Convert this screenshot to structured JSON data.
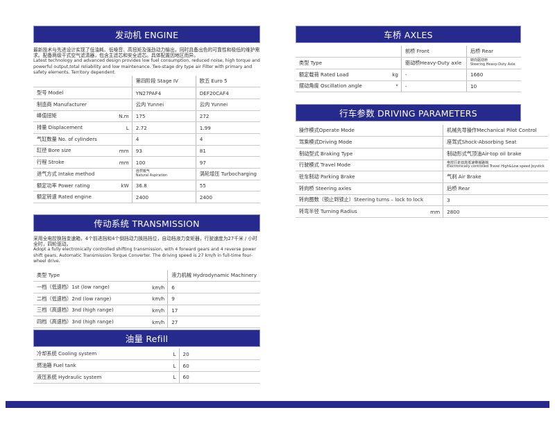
{
  "engine": {
    "title": "发动机  ENGINE",
    "intro_cn": "最新技术与先进设计实现了低油耗、低噪音、高扭矩及强劲动力输出，同时具备出色的可靠性和极低的维护需求。配备两级干式空气滤清器，包含主滤芯和安全滤芯。具体配置因地区而异。",
    "intro_en": "Latest technology and advanced design provides low fuel consumption, reduced noise, high torque and powerful output,total reliability and low maintenance. Two-stage dry type air Filter with primary and safety elements. Territory dependent.",
    "columns": [
      "第四阶段 Stage IV",
      "欧五 Euro 5"
    ],
    "rows": [
      {
        "label": "型号 Model",
        "unit": "",
        "v1": "YN27PAF4",
        "v2": "DEF20CAF4"
      },
      {
        "label": "制造商  Manufacturer",
        "unit": "",
        "v1": "云内  Yunnei",
        "v2": "云内  Yunnei"
      },
      {
        "label": "峰值扭矩",
        "unit": "N.m",
        "v1": "175",
        "v2": "272"
      },
      {
        "label": "排量  Displacement",
        "unit": "L",
        "v1": "2.72",
        "v2": "1.99"
      },
      {
        "label": "气缸数量  No. of cylinders",
        "unit": "",
        "v1": "4",
        "v2": "4"
      },
      {
        "label": "缸径  Bore size",
        "unit": "mm",
        "v1": "93",
        "v2": "81"
      },
      {
        "label": "行程  Stroke",
        "unit": "mm",
        "v1": "100",
        "v2": "97"
      },
      {
        "label": "进气方式  Intake method",
        "unit": "",
        "v1": "自然吸气\nNatural Aspiration",
        "v2": "涡轮增压 Turbocharging"
      },
      {
        "label": "额定功率  Power rating",
        "unit": "kW",
        "v1": "36.8",
        "v2": "55"
      },
      {
        "label": "额定转速  Rated engine",
        "unit": "",
        "v1": "2400",
        "v2": "2400"
      }
    ]
  },
  "transmission": {
    "title": "传动系统  TRANSMISSION",
    "intro_cn": "采用全电控换挡变速箱，4个前进挡和4个倒挡动力换挡挡位，自动档液力变矩器，行驶速度为27千米 / 小时全时，四轮驱动。",
    "intro_en": "Adopt a fully electronically controlled shifting transmission, with 4 forward gears and 4 reverse power shift gears, Automatic Transmission Torque Converter. The driving speed is 27 km/h in full-time four-wheel drive.",
    "rows": [
      {
        "label": "类型  Type",
        "unit": "",
        "v1": "液力机械  Hydrodynamic Machinery"
      },
      {
        "label": "一档（低速档）1st (low range)",
        "unit": "km/h",
        "v1": "6"
      },
      {
        "label": "二档（低速档）2nd (low range)",
        "unit": "km/h",
        "v1": "9"
      },
      {
        "label": "三档（高速档）3nd (high range)",
        "unit": "km/h",
        "v1": "17"
      },
      {
        "label": "四档（高速档）3nd (high range)",
        "unit": "km/h",
        "v1": "27"
      }
    ]
  },
  "refill": {
    "title": "油量  Refill",
    "rows": [
      {
        "label": "冷却系统  Cooling system",
        "unit": "L",
        "v1": "20"
      },
      {
        "label": "燃油箱  Fuel tank",
        "unit": "L",
        "v1": "60"
      },
      {
        "label": "液压系统  Hydraulic system",
        "unit": "L",
        "v1": "60"
      }
    ]
  },
  "axles": {
    "title": "车桥  AXLES",
    "columns": [
      "前桥  Front",
      "后桥  Rear"
    ],
    "rows": [
      {
        "label": "类型 Type",
        "unit": "",
        "v1": "驱动桥Heavy-Duty axle",
        "v2": "转向驱动桥\nSteering Heavy-Duty Axle"
      },
      {
        "label": "额定载荷  Rated Load",
        "unit": "kg",
        "v1": "-",
        "v2": "1660"
      },
      {
        "label": "摆动角度  Oscillation angle",
        "unit": "°",
        "v1": "-",
        "v2": "10"
      }
    ]
  },
  "driving": {
    "title": "行车参数  DRIVING PARAMETERS",
    "rows": [
      {
        "label": "操作模式Operate Mode",
        "unit": "",
        "v1": "机械先导操作Mechanical Pilot Control"
      },
      {
        "label": "驾乘模式Driving Mode",
        "unit": "",
        "v1": "座驾式Shock-Absorbing Seat"
      },
      {
        "label": "制动型式  Braking Type",
        "unit": "",
        "v1": "制动形式气顶油Air-top oil brake"
      },
      {
        "label": "行驶模式  Travel Mode",
        "unit": "",
        "v1": "电控行走双高低速带摇路档\nElectronically controlled Travel High&Low speed Joystick"
      },
      {
        "label": "驻车制动  Parking Brake",
        "unit": "",
        "v1": "气刹  Air Brake"
      },
      {
        "label": "转向桥  Steering axles",
        "unit": "",
        "v1": "后桥  Rear"
      },
      {
        "label": "转向圈数（锁止到锁止）Steering turns – lock to lock",
        "unit": "",
        "v1": "3"
      },
      {
        "label": "转弯半径  Turning Radius",
        "unit": "mm",
        "v1": "2800"
      }
    ]
  },
  "colors": {
    "header": "#262a8c"
  }
}
